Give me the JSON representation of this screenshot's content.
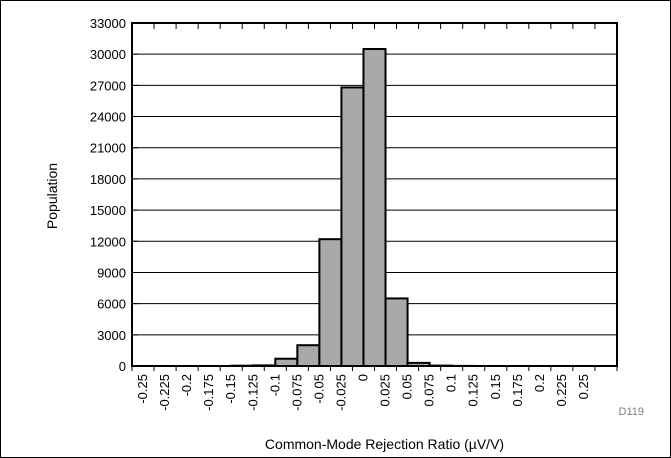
{
  "chart_data": {
    "type": "bar",
    "xlabel": "Common-Mode Rejection Ratio (µV/V)",
    "ylabel": "Population",
    "figure_code": "D119",
    "ylim": [
      0,
      33000
    ],
    "yticks": [
      0,
      3000,
      6000,
      9000,
      12000,
      15000,
      18000,
      21000,
      24000,
      27000,
      30000,
      33000
    ],
    "categories": [
      "-0.25",
      "-0.225",
      "-0.2",
      "-0.175",
      "-0.15",
      "-0.125",
      "-0.1",
      "-0.075",
      "-0.05",
      "-0.025",
      "0",
      "0.025",
      "0.05",
      "0.075",
      "0.1",
      "0.125",
      "0.15",
      "0.175",
      "0.2",
      "0.225",
      "0.25"
    ],
    "series": [
      {
        "values": [
          0,
          0,
          0,
          0,
          30,
          60,
          700,
          2000,
          12200,
          26800,
          30500,
          6500,
          300,
          40,
          10,
          0,
          0,
          0,
          0,
          0,
          0
        ]
      }
    ],
    "grid": true,
    "colors": {
      "bar_fill": "#a9a9a9",
      "bar_stroke": "#000000",
      "grid": "#000000"
    }
  }
}
